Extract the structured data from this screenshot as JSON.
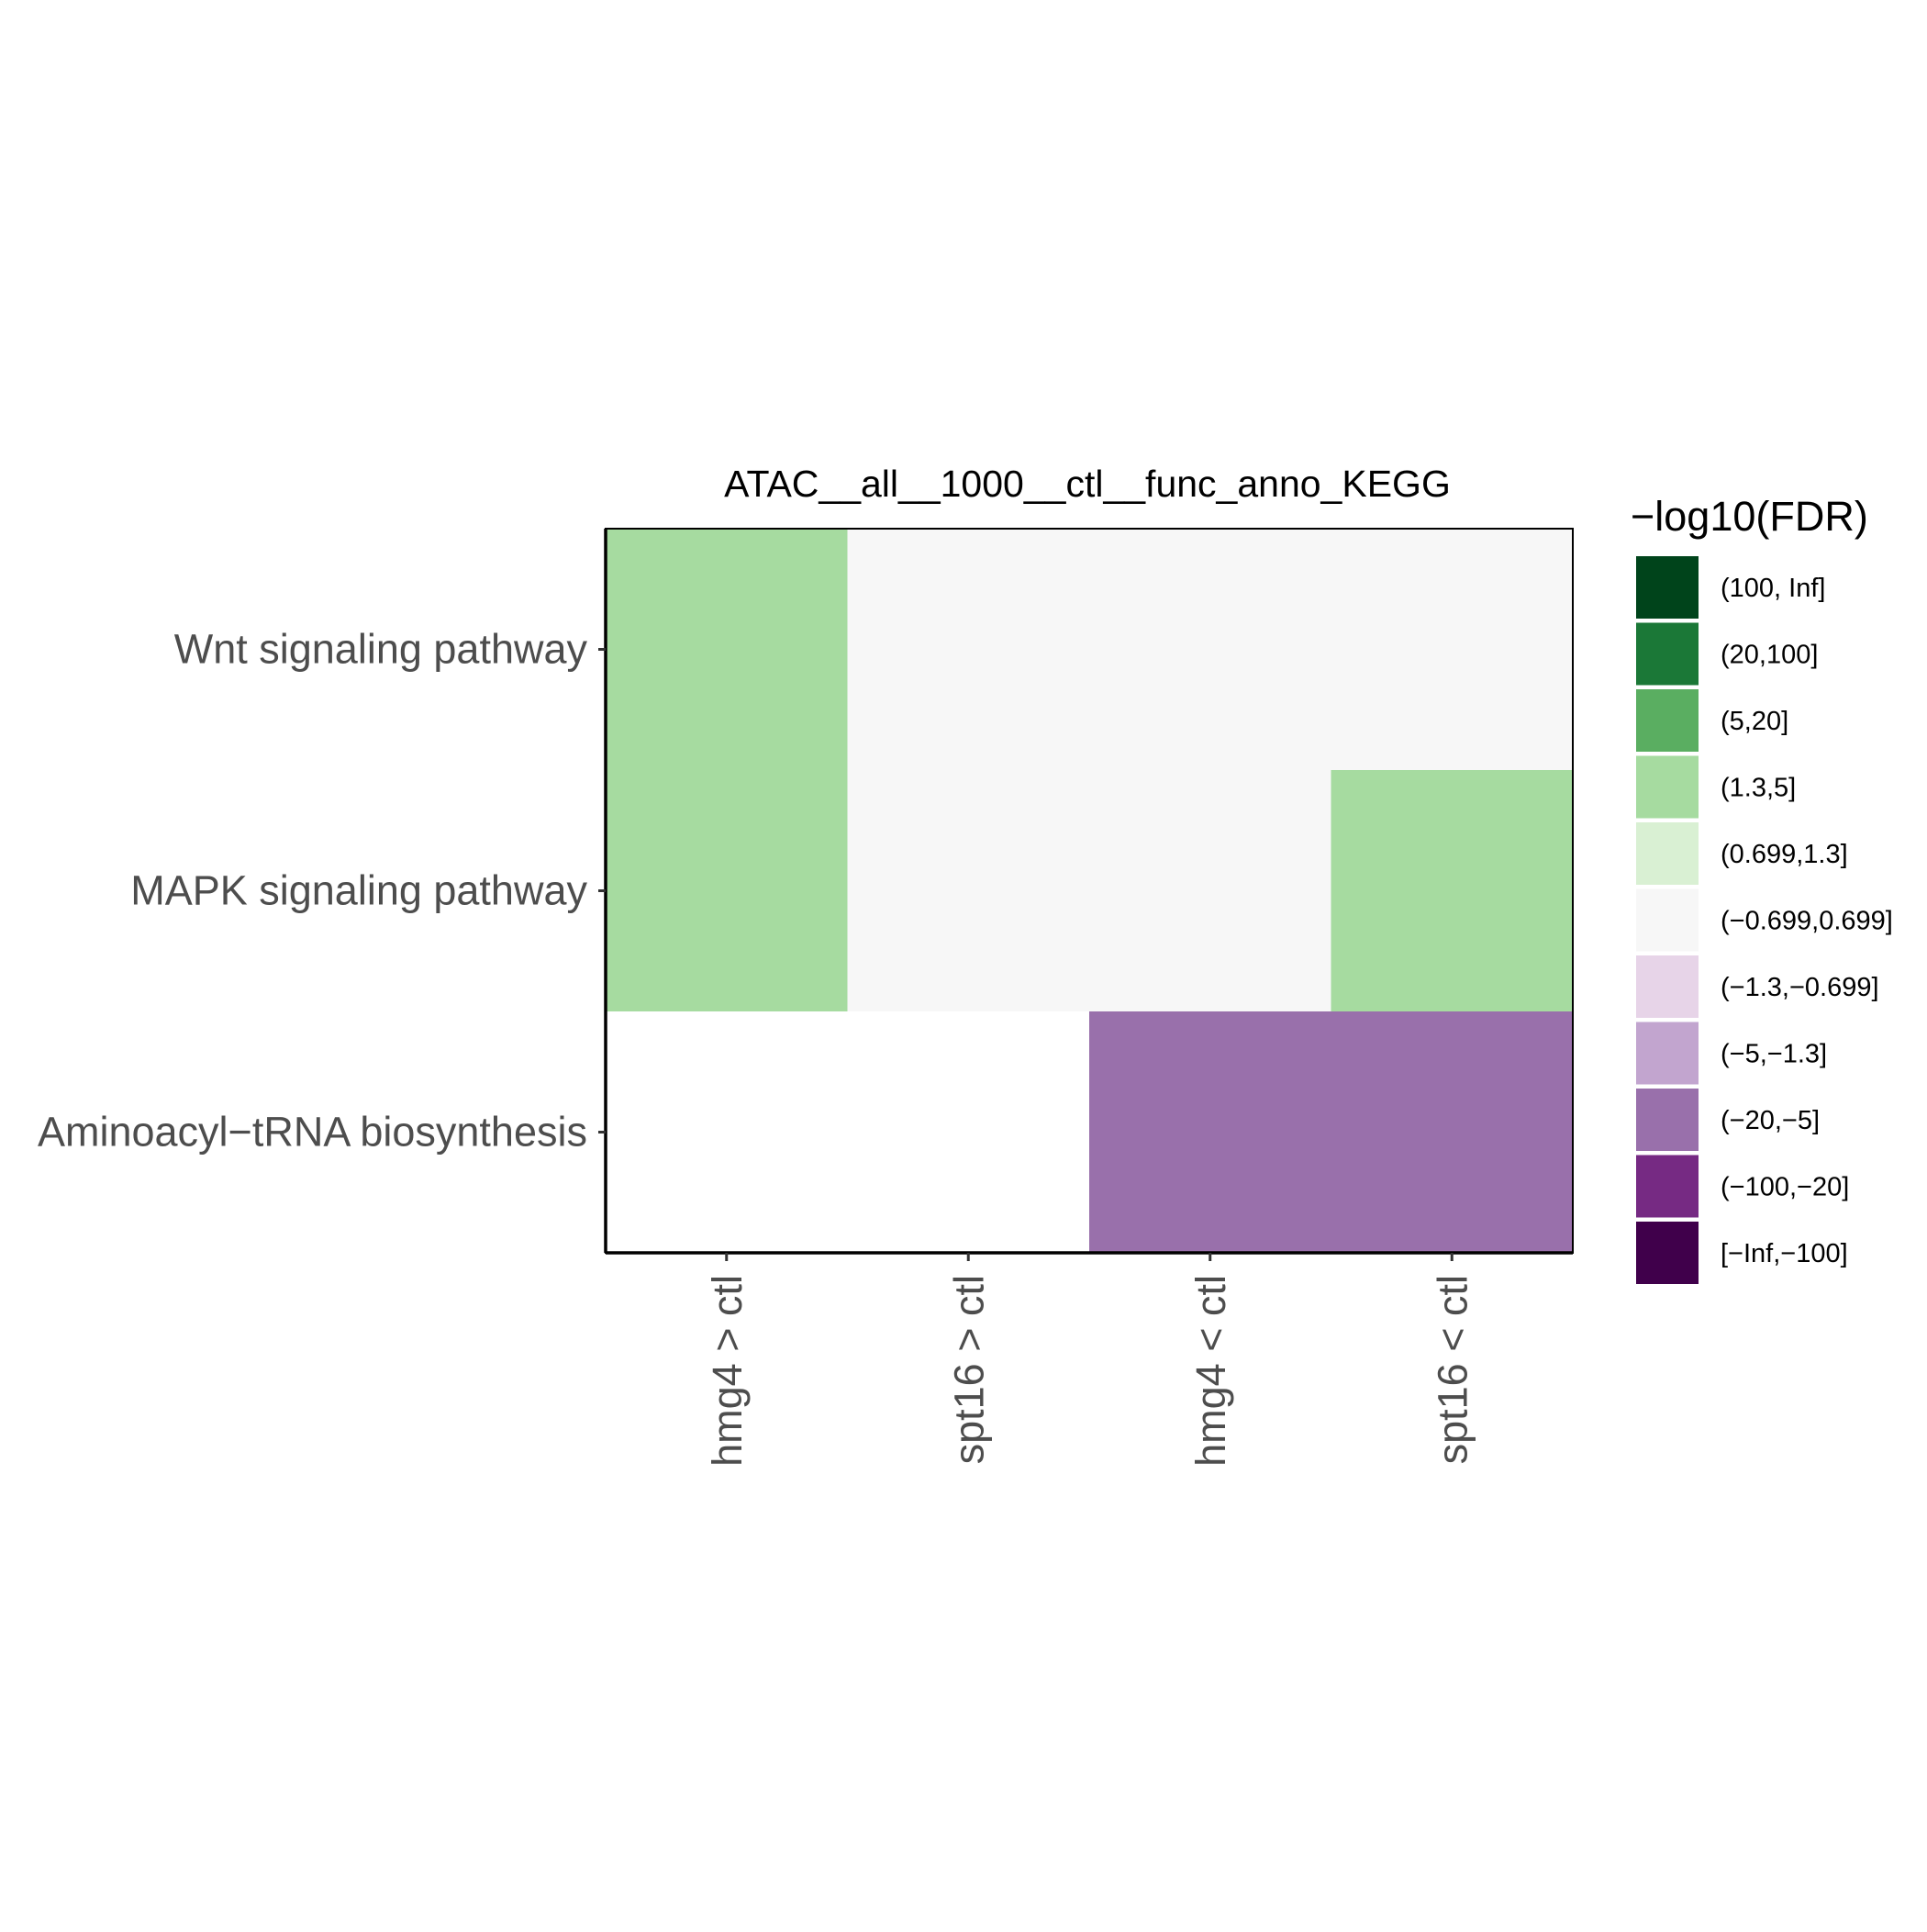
{
  "chart_data": {
    "type": "heatmap",
    "title": "ATAC__all__1000__ctl__func_anno_KEGG",
    "x_categories": [
      "hmg4 > ctl",
      "spt16 > ctl",
      "hmg4 < ctl",
      "spt16 < ctl"
    ],
    "y_categories": [
      "Wnt signaling pathway",
      "MAPK signaling pathway",
      "Aminoacyl−tRNA biosynthesis"
    ],
    "cells": [
      [
        "(1.3,5]",
        "(−0.699,0.699]",
        "(−0.699,0.699]",
        "(−0.699,0.699]"
      ],
      [
        "(1.3,5]",
        "(−0.699,0.699]",
        "(−0.699,0.699]",
        "(1.3,5]"
      ],
      [
        null,
        null,
        "(−20,−5]",
        "(−20,−5]"
      ]
    ],
    "legend": {
      "title": "−log10(FDR)",
      "position": "right",
      "entries": [
        {
          "label": "(100, Inf]",
          "color": "#00441b"
        },
        {
          "label": "(20,100]",
          "color": "#1b7837"
        },
        {
          "label": "(5,20]",
          "color": "#5aae61"
        },
        {
          "label": "(1.3,5]",
          "color": "#a6dba0"
        },
        {
          "label": "(0.699,1.3]",
          "color": "#d9f0d3"
        },
        {
          "label": "(−0.699,0.699]",
          "color": "#f7f7f7"
        },
        {
          "label": "(−1.3,−0.699]",
          "color": "#e7d4e8"
        },
        {
          "label": "(−5,−1.3]",
          "color": "#c2a5cf"
        },
        {
          "label": "(−20,−5]",
          "color": "#9970ab"
        },
        {
          "label": "(−100,−20]",
          "color": "#762a83"
        },
        {
          "label": "[−Inf,−100]",
          "color": "#40004b"
        }
      ]
    },
    "missing_color": "#ffffff",
    "grid": false
  }
}
